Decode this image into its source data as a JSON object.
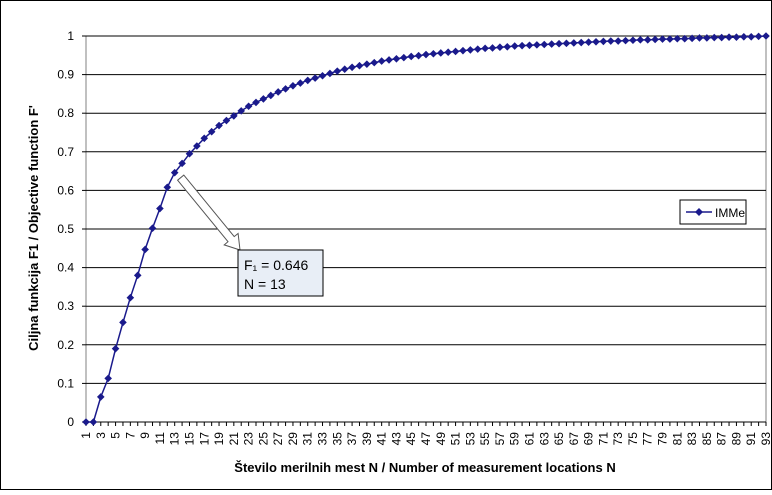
{
  "colors": {
    "series": "#1a1a8c",
    "plot_border": "#808080",
    "grid": "#000000",
    "annotation_fill": "#e8eef6",
    "arrow_fill": "#ffffff"
  },
  "chart_data": {
    "type": "line",
    "title": "",
    "xlabel": "Število merilnih mest N / Number of measurement locations N",
    "ylabel": "Ciljna funkcija F1 / Objective function F'",
    "xlim": [
      1,
      93
    ],
    "ylim": [
      0,
      1
    ],
    "x_ticks": [
      1,
      3,
      5,
      7,
      9,
      11,
      13,
      15,
      17,
      19,
      21,
      23,
      25,
      27,
      29,
      31,
      33,
      35,
      37,
      39,
      41,
      43,
      45,
      47,
      49,
      51,
      53,
      55,
      57,
      59,
      61,
      63,
      65,
      67,
      69,
      71,
      73,
      75,
      77,
      79,
      81,
      83,
      85,
      87,
      89,
      91,
      93
    ],
    "y_ticks": [
      "0",
      "0.1",
      "0.2",
      "0.3",
      "0.4",
      "0.5",
      "0.6",
      "0.7",
      "0.8",
      "0.9",
      "1"
    ],
    "y_tick_values": [
      0,
      0.1,
      0.2,
      0.3,
      0.4,
      0.5,
      0.6,
      0.7,
      0.8,
      0.9,
      1
    ],
    "grid": "horizontal",
    "legend_position": "right",
    "series": [
      {
        "name": "IMMe",
        "marker": "diamond",
        "x": [
          1,
          2,
          3,
          4,
          5,
          6,
          7,
          8,
          9,
          10,
          11,
          12,
          13,
          14,
          15,
          16,
          17,
          18,
          19,
          20,
          21,
          22,
          23,
          24,
          25,
          26,
          27,
          28,
          29,
          30,
          31,
          32,
          33,
          34,
          35,
          36,
          37,
          38,
          39,
          40,
          41,
          42,
          43,
          44,
          45,
          46,
          47,
          48,
          49,
          50,
          51,
          52,
          53,
          54,
          55,
          56,
          57,
          58,
          59,
          60,
          61,
          62,
          63,
          64,
          65,
          66,
          67,
          68,
          69,
          70,
          71,
          72,
          73,
          74,
          75,
          76,
          77,
          78,
          79,
          80,
          81,
          82,
          83,
          84,
          85,
          86,
          87,
          88,
          89,
          90,
          91,
          92,
          93
        ],
        "values": [
          0,
          0,
          0.065,
          0.113,
          0.19,
          0.258,
          0.322,
          0.38,
          0.447,
          0.502,
          0.553,
          0.608,
          0.646,
          0.67,
          0.695,
          0.715,
          0.735,
          0.752,
          0.768,
          0.781,
          0.793,
          0.806,
          0.818,
          0.828,
          0.837,
          0.846,
          0.855,
          0.863,
          0.871,
          0.878,
          0.885,
          0.891,
          0.897,
          0.903,
          0.909,
          0.914,
          0.919,
          0.923,
          0.927,
          0.931,
          0.935,
          0.938,
          0.941,
          0.944,
          0.947,
          0.949,
          0.952,
          0.954,
          0.956,
          0.958,
          0.96,
          0.962,
          0.964,
          0.966,
          0.968,
          0.969,
          0.971,
          0.972,
          0.974,
          0.975,
          0.976,
          0.977,
          0.978,
          0.979,
          0.98,
          0.981,
          0.982,
          0.983,
          0.984,
          0.985,
          0.986,
          0.987,
          0.987,
          0.988,
          0.989,
          0.99,
          0.99,
          0.991,
          0.992,
          0.992,
          0.993,
          0.993,
          0.994,
          0.995,
          0.995,
          0.996,
          0.996,
          0.997,
          0.997,
          0.998,
          0.998,
          0.999,
          1
        ]
      }
    ],
    "annotation": {
      "line1": "F₁ = 0.646",
      "line2": "N = 13",
      "target_x": 13,
      "target_y": 0.646
    }
  }
}
